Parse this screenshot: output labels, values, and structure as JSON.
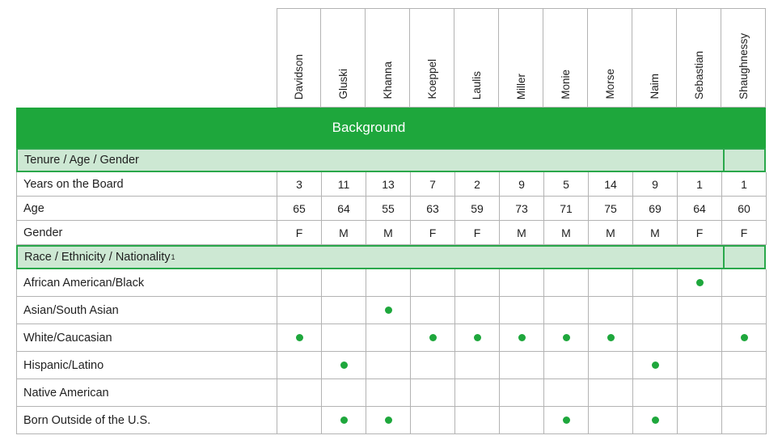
{
  "columns": {
    "directors": [
      "Davidson",
      "Gluski",
      "Khanna",
      "Koeppel",
      "Laulis",
      "Miller",
      "Monie",
      "Morse",
      "Naim",
      "Sebastian",
      "Shaughnessy"
    ]
  },
  "banner": {
    "title": "Background"
  },
  "sections": {
    "tenure": {
      "label": "Tenure / Age / Gender"
    },
    "race": {
      "label": "Race / Ethnicity / Nationality",
      "footnote_marker": "1"
    }
  },
  "stat_rows": [
    {
      "label": "Years on the Board",
      "values": [
        "3",
        "11",
        "13",
        "7",
        "2",
        "9",
        "5",
        "14",
        "9",
        "1",
        "1"
      ]
    },
    {
      "label": "Age",
      "values": [
        "65",
        "64",
        "55",
        "63",
        "59",
        "73",
        "71",
        "75",
        "69",
        "64",
        "60"
      ]
    },
    {
      "label": "Gender",
      "values": [
        "F",
        "M",
        "M",
        "F",
        "F",
        "M",
        "M",
        "M",
        "M",
        "F",
        "F"
      ]
    }
  ],
  "race_rows": [
    {
      "label": "African American/Black",
      "dots": [
        0,
        0,
        0,
        0,
        0,
        0,
        0,
        0,
        0,
        1,
        0
      ]
    },
    {
      "label": "Asian/South Asian",
      "dots": [
        0,
        0,
        1,
        0,
        0,
        0,
        0,
        0,
        0,
        0,
        0
      ]
    },
    {
      "label": "White/Caucasian",
      "dots": [
        1,
        0,
        0,
        1,
        1,
        1,
        1,
        1,
        0,
        0,
        1
      ]
    },
    {
      "label": "Hispanic/Latino",
      "dots": [
        0,
        1,
        0,
        0,
        0,
        0,
        0,
        0,
        1,
        0,
        0
      ]
    },
    {
      "label": "Native American",
      "dots": [
        0,
        0,
        0,
        0,
        0,
        0,
        0,
        0,
        0,
        0,
        0
      ]
    },
    {
      "label": "Born Outside of the U.S.",
      "dots": [
        0,
        1,
        1,
        0,
        0,
        0,
        1,
        0,
        1,
        0,
        0
      ]
    }
  ],
  "colors": {
    "accent_green": "#1ea73c",
    "section_bg": "#cde8d3",
    "section_border": "#2aa84b",
    "grid_border": "#b3b3b3",
    "dot_green": "#1ea73c"
  }
}
